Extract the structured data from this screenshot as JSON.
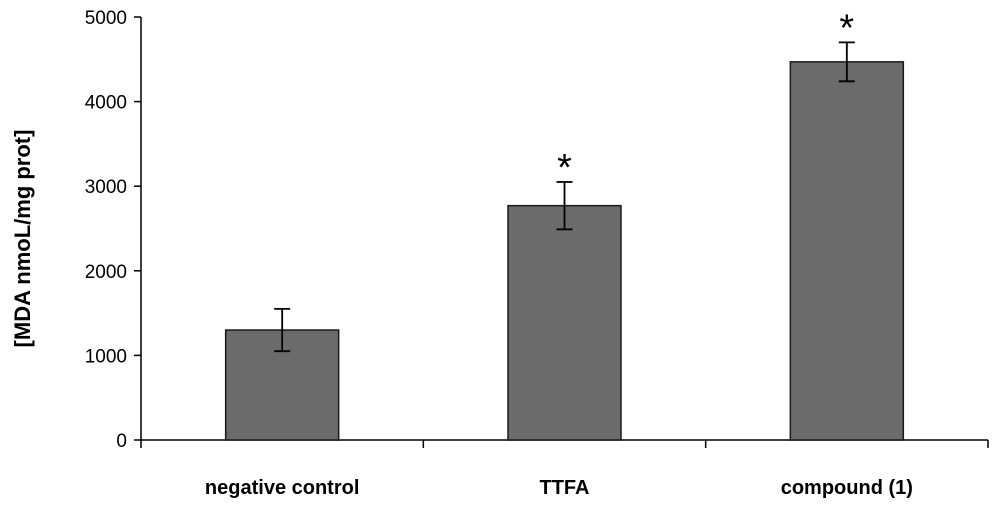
{
  "chart_data": {
    "type": "bar",
    "title": "",
    "xlabel": "",
    "ylabel": "[MDA nmoL/mg prot]",
    "ylim": [
      0,
      5000
    ],
    "yticks": [
      "0",
      "1000",
      "2000",
      "3000",
      "4000",
      "5000"
    ],
    "ytick_values": [
      0,
      1000,
      2000,
      3000,
      4000,
      5000
    ],
    "categories": [
      "negative control",
      "TTFA",
      "compound (1)"
    ],
    "values": [
      1300,
      2770,
      4470
    ],
    "errors": [
      250,
      280,
      230
    ],
    "significance": [
      "",
      "*",
      "*"
    ],
    "grid": false,
    "bar_color": "#6b6b6b",
    "bar_edge_color": "#1a1a1a"
  }
}
